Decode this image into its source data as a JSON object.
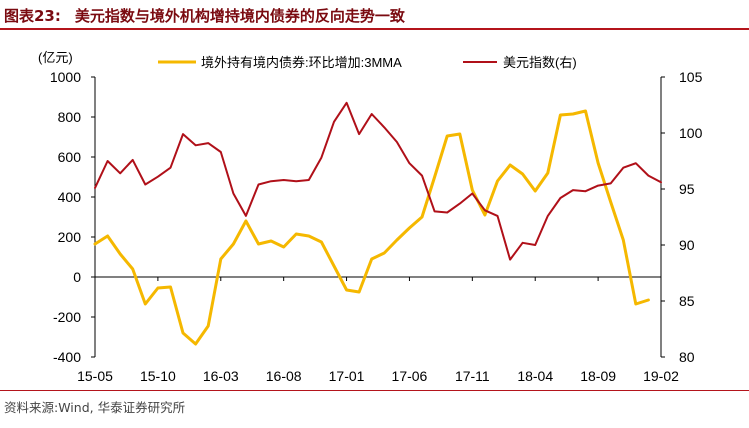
{
  "header": {
    "figure_label": "图表23:",
    "title": "美元指数与境外机构增持境内债券的反向走势一致"
  },
  "footer": {
    "source": "资料来源:Wind, 华泰证券研究所"
  },
  "colors": {
    "series_bonds": "#f5b800",
    "series_usd": "#b01019",
    "accent": "#b4141b"
  },
  "chart_data": {
    "type": "line",
    "unit_left": "(亿元)",
    "x_tick_labels": [
      "15-05",
      "15-10",
      "16-03",
      "16-08",
      "17-01",
      "17-06",
      "17-11",
      "18-04",
      "18-09",
      "19-02"
    ],
    "x_start": "2015-05",
    "y_left": {
      "lim": [
        -400,
        1000
      ],
      "ticks": [
        -400,
        -200,
        0,
        200,
        400,
        600,
        800,
        1000
      ]
    },
    "y_right": {
      "lim": [
        80,
        105
      ],
      "ticks": [
        80,
        85,
        90,
        95,
        100,
        105
      ]
    },
    "grid": false,
    "legend_position": "top",
    "series": [
      {
        "name": "境外持有境内债券:环比增加:3MMA",
        "axis": "left",
        "color": "#f5b800",
        "values": [
          165,
          205,
          115,
          40,
          -135,
          -55,
          -50,
          -280,
          -335,
          -245,
          90,
          165,
          280,
          165,
          180,
          150,
          215,
          205,
          175,
          55,
          -65,
          -75,
          90,
          120,
          185,
          245,
          300,
          500,
          705,
          715,
          435,
          310,
          480,
          560,
          515,
          430,
          520,
          810,
          815,
          830,
          570,
          375,
          185,
          -135,
          -115
        ]
      },
      {
        "name": "美元指数(右)",
        "axis": "right",
        "color": "#b01019",
        "values": [
          95.1,
          97.5,
          96.4,
          97.6,
          95.4,
          96.1,
          96.9,
          99.9,
          98.9,
          99.1,
          98.3,
          94.6,
          92.6,
          95.4,
          95.7,
          95.8,
          95.7,
          95.8,
          97.8,
          101.0,
          102.7,
          99.9,
          101.7,
          100.5,
          99.2,
          97.3,
          96.2,
          93.0,
          92.9,
          93.7,
          94.6,
          93.1,
          92.6,
          88.7,
          90.2,
          90.0,
          92.6,
          94.2,
          94.9,
          94.8,
          95.3,
          95.5,
          96.9,
          97.3,
          96.2,
          95.6
        ]
      }
    ]
  }
}
